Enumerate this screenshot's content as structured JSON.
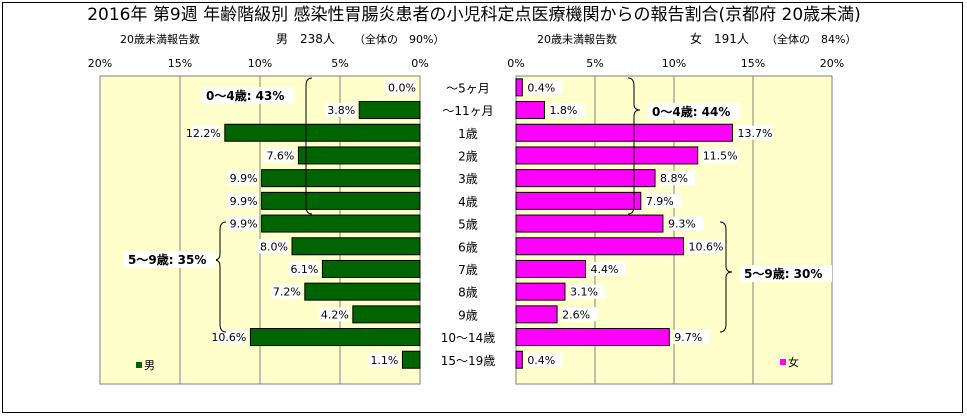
{
  "title": "2016年 第9週 年齢階級別 感染性胃腸炎患者の小児科定点医療機関からの報告割合(京都府 20歳未満)",
  "male_header": {
    "label": "20歳未満報告数",
    "name": "男",
    "count": "238人",
    "share": "（全体の　90%）"
  },
  "female_header": {
    "label": "20歳未満報告数",
    "name": "女",
    "count": "191人",
    "share": "（全体の　84%）"
  },
  "annotations": {
    "male_0_4": "0～4歳: 43%",
    "male_5_9": "5～9歳: 35%",
    "female_0_4": "0～4歳: 44%",
    "female_5_9": "5～9歳: 30%"
  },
  "legend": {
    "male": "男",
    "female": "女"
  },
  "colors": {
    "male": "#006400",
    "female": "#ff00ff",
    "plot_bg": "#ffffcc"
  },
  "chart_data": {
    "type": "bar",
    "orientation": "horizontal-population-pyramid",
    "categories": [
      "～5ヶ月",
      "～11ヶ月",
      "1歳",
      "2歳",
      "3歳",
      "4歳",
      "5歳",
      "6歳",
      "7歳",
      "8歳",
      "9歳",
      "10～14歳",
      "15～19歳"
    ],
    "series": [
      {
        "name": "男",
        "values": [
          0.0,
          3.8,
          12.2,
          7.6,
          9.9,
          9.9,
          9.9,
          8.0,
          6.1,
          7.2,
          4.2,
          10.6,
          1.1
        ],
        "labels": [
          "0.0%",
          "3.8%",
          "12.2%",
          "7.6%",
          "9.9%",
          "9.9%",
          "9.9%",
          "8.0%",
          "6.1%",
          "7.2%",
          "4.2%",
          "10.6%",
          "1.1%"
        ]
      },
      {
        "name": "女",
        "values": [
          0.4,
          1.8,
          13.7,
          11.5,
          8.8,
          7.9,
          9.3,
          10.6,
          4.4,
          3.1,
          2.6,
          9.7,
          0.4
        ],
        "labels": [
          "0.4%",
          "1.8%",
          "13.7%",
          "11.5%",
          "8.8%",
          "7.9%",
          "9.3%",
          "10.6%",
          "4.4%",
          "3.1%",
          "2.6%",
          "9.7%",
          "0.4%"
        ]
      }
    ],
    "xlim": [
      0,
      20
    ],
    "x_ticks": [
      "0%",
      "5%",
      "10%",
      "15%",
      "20%"
    ],
    "male_x_ticks": [
      "20%",
      "15%",
      "10%",
      "5%",
      "0%"
    ],
    "grid": true,
    "legend": "bottom-left / bottom-right"
  }
}
